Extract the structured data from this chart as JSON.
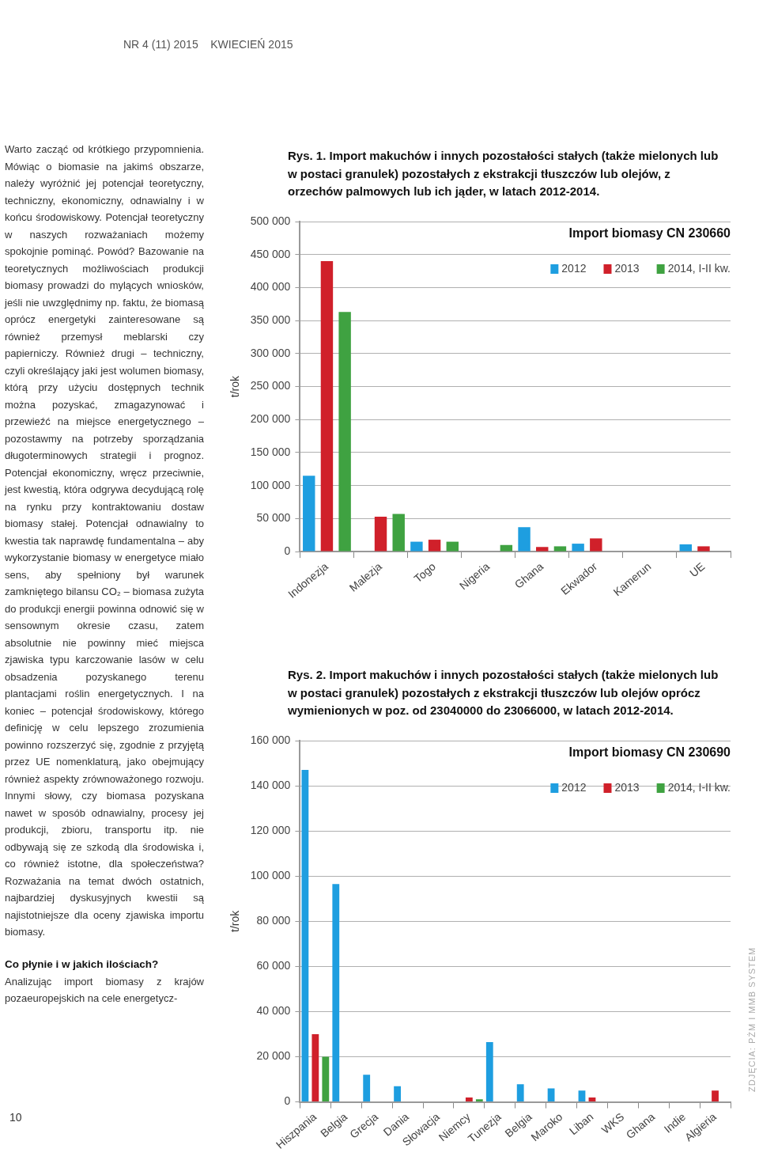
{
  "chart_data": [
    {
      "type": "bar",
      "title": "Rys. 1. Import makuchów i innych pozostałości stałych (także mielonych lub w postaci granulek) pozostałych z ekstrakcji tłuszczów lub olejów, z orzechów palmowych lub ich jąder, w latach 2012-2014.",
      "subtitle": "Import biomasy CN 230660",
      "ylabel": "t/rok",
      "categories": [
        "Indonezja",
        "Malezja",
        "Togo",
        "Nigeria",
        "Ghana",
        "Ekwador",
        "Kamerun",
        "UE"
      ],
      "series": [
        {
          "name": "2012",
          "color": "#1e9ee0",
          "values": [
            115000,
            null,
            15000,
            null,
            37000,
            12000,
            null,
            11000
          ]
        },
        {
          "name": "2013",
          "color": "#d0202a",
          "values": [
            440000,
            53000,
            18000,
            null,
            7000,
            20000,
            null,
            8000
          ]
        },
        {
          "name": "2014, I-II kw.",
          "color": "#3fa241",
          "values": [
            363000,
            57000,
            15000,
            10000,
            8000,
            null,
            null,
            null
          ]
        }
      ],
      "ylim": [
        0,
        500000
      ],
      "yticks": [
        {
          "value": 0,
          "label": "0"
        },
        {
          "value": 50000,
          "label": "50 000"
        },
        {
          "value": 100000,
          "label": "100 000"
        },
        {
          "value": 150000,
          "label": "150 000"
        },
        {
          "value": 200000,
          "label": "200 000"
        },
        {
          "value": 250000,
          "label": "250 000"
        },
        {
          "value": 300000,
          "label": "300 000"
        },
        {
          "value": 350000,
          "label": "350 000"
        },
        {
          "value": 400000,
          "label": "400 000"
        },
        {
          "value": 450000,
          "label": "450 000"
        },
        {
          "value": 500000,
          "label": "500 000"
        }
      ],
      "grid": "y",
      "legend": "top right",
      "annotations": [
        "NR 4 (11) 2015    KWIECIEŃ 2015",
        "Warto zacząć od krótkiego przypomnienia. Mówiąc o biomasie na jakimś obszarze, należy wyróżnić jej potencjał teoretyczny, techniczny, ekonomiczny, odnawialny i w końcu środowiskowy. Potencjał teoretyczny w naszych rozważaniach możemy spokojnie pominąć. Powód? Bazowanie na teoretycznych możliwościach produkcji biomasy prowadzi do mylących wniosków, jeśli nie uwzględnimy np. faktu, że biomasą oprócz energetyki zainteresowane są również przemysł meblarski czy papierniczy. Również drugi – techniczny, czyli określający jaki jest wolumen biomasy, którą przy użyciu dostępnych technik można pozyskać, zmagazynować i przewieźć na miejsce energetycznego – pozostawmy na potrzeby sporządzania długoterminowych strategii i prognoz. Potencjał ekonomiczny, wręcz przeciwnie, jest kwestią, która odgrywa decydującą rolę na rynku przy kontraktowaniu dostaw biomasy stałej. Potencjał odnawialny to kwestia tak naprawdę fundamentalna – aby wykorzystanie biomasy w energetyce miało sens, aby spełniony był warunek zamkniętego bilansu CO₂ – biomasa zużyta do produkcji energii powinna odnowić się w sensownym okresie czasu, zatem absolutnie nie powinny mieć miejsca zjawiska typu karczowanie lasów w celu obsadzenia pozyskanego terenu plantacjami roślin energetycznych. I na koniec – potencjał środowiskowy, którego definicję w celu lepszego zrozumienia powinno rozszerzyć się, zgodnie z przyjętą przez UE nomenklaturą, jako obejmujący również aspekty zrównoważonego rozwoju. Innymi słowy, czy biomasa pozyskana nawet w sposób odnawialny, procesy jej produkcji, zbioru, transportu itp. nie odbywają się ze szkodą dla środowiska i, co również istotne, dla społeczeństwa? Rozważania na temat dwóch ostatnich, najbardziej dyskusyjnych kwestii są najistotniejsze dla oceny zjawiska importu biomasy.",
        "Co płynie i w jakich ilościach?",
        "Analizując import biomasy z krajów pozaeuropejskich na cele energetycz-",
        "10",
        "ZDJĘCIA: PŻM I MMB SYSTEM"
      ]
    },
    {
      "type": "bar",
      "title": "Rys. 2. Import makuchów i innych pozostałości stałych (także mielonych lub w postaci granulek) pozostałych z ekstrakcji tłuszczów lub olejów oprócz wymienionych w poz. od 23040000 do 23066000, w latach 2012-2014.",
      "subtitle": "Import biomasy CN 230690",
      "ylabel": "t/rok",
      "categories": [
        "Hiszpania",
        "Belgia",
        "Grecja",
        "Dania",
        "Słowacja",
        "Niemcy",
        "Tunezja",
        "Belgia",
        "Maroko",
        "Liban",
        "WKS",
        "Ghana",
        "Indie",
        "Algieria"
      ],
      "series": [
        {
          "name": "2012",
          "color": "#1e9ee0",
          "values": [
            147000,
            96500,
            12000,
            7000,
            null,
            null,
            26500,
            7800,
            6000,
            5000,
            null,
            null,
            null,
            null
          ]
        },
        {
          "name": "2013",
          "color": "#d0202a",
          "values": [
            30000,
            null,
            null,
            null,
            null,
            2000,
            null,
            null,
            null,
            2000,
            null,
            null,
            null,
            5000
          ]
        },
        {
          "name": "2014, I-II kw.",
          "color": "#3fa241",
          "values": [
            20000,
            null,
            null,
            null,
            null,
            1200,
            null,
            null,
            null,
            null,
            null,
            null,
            null,
            null
          ]
        }
      ],
      "ylim": [
        0,
        160000
      ],
      "yticks": [
        {
          "value": 0,
          "label": "0"
        },
        {
          "value": 20000,
          "label": "20 000"
        },
        {
          "value": 40000,
          "label": "40 000"
        },
        {
          "value": 60000,
          "label": "60 000"
        },
        {
          "value": 80000,
          "label": "80 000"
        },
        {
          "value": 100000,
          "label": "100 000"
        },
        {
          "value": 120000,
          "label": "120 000"
        },
        {
          "value": 140000,
          "label": "140 000"
        },
        {
          "value": 160000,
          "label": "160 000"
        }
      ],
      "grid": "y",
      "legend": "top right"
    }
  ]
}
